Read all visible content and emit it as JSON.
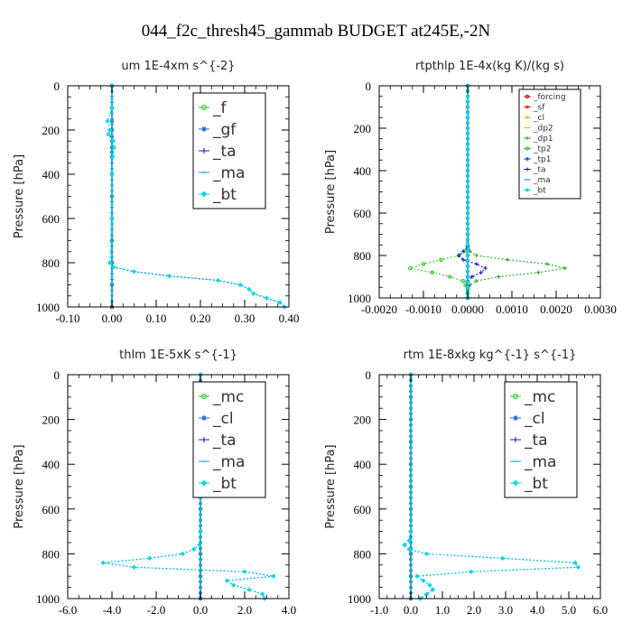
{
  "figure_title": "044_f2c_thresh45_gammab  BUDGET at245E,-2N",
  "chart_data": [
    {
      "type": "line",
      "title": "um  1E-4xm s^{-2}",
      "ylabel": "Pressure [hPa]",
      "xlim": [
        -0.1,
        0.4
      ],
      "ylim": [
        0,
        1000
      ],
      "y_inverted": true,
      "xticks": [
        "-0.10",
        "0.00",
        "0.10",
        "0.20",
        "0.30",
        "0.40"
      ],
      "yticks": [
        "0",
        "200",
        "400",
        "600",
        "800",
        "1000"
      ],
      "legend": {
        "position": "top-right",
        "size": "large"
      },
      "series": [
        {
          "name": "_f",
          "color": "#22cc22",
          "marker": "circle",
          "y": [
            0,
            100,
            200,
            300,
            400,
            500,
            600,
            700,
            800,
            900,
            1000
          ],
          "x": [
            0,
            0,
            0,
            0,
            0,
            0,
            0,
            0,
            0,
            0,
            0
          ]
        },
        {
          "name": "_gf",
          "color": "#1a5fd0",
          "marker": "star",
          "y": [
            0,
            100,
            160,
            200,
            230,
            250,
            280,
            320,
            400,
            600,
            800,
            900,
            1000
          ],
          "x": [
            0,
            0,
            0,
            0,
            0,
            0,
            0,
            0,
            0,
            0,
            0,
            0,
            0
          ]
        },
        {
          "name": "_ta",
          "color": "#1a1acc",
          "marker": "plus",
          "y": [
            0,
            100,
            200,
            300,
            400,
            500,
            600,
            700,
            800,
            820,
            840,
            860,
            880,
            900,
            920,
            940,
            960,
            980,
            1000
          ],
          "x": [
            0,
            0,
            0,
            0,
            0,
            0,
            0,
            0,
            0,
            0.004,
            0.05,
            0.13,
            0.24,
            0.29,
            0.31,
            0.32,
            0.35,
            0.38,
            0.39
          ]
        },
        {
          "name": "_ma",
          "color": "#1aaacc",
          "marker": "dash",
          "y": [
            0,
            1000
          ],
          "x": [
            0,
            0
          ]
        },
        {
          "name": "_bt",
          "color": "#00d8ee",
          "marker": "diamond",
          "y": [
            0,
            100,
            160,
            200,
            220,
            250,
            280,
            320,
            400,
            600,
            800,
            820,
            840,
            860,
            880,
            900,
            920,
            940,
            960,
            980,
            1000
          ],
          "x": [
            0,
            0,
            -0.01,
            -0.005,
            -0.008,
            0.003,
            0.005,
            0.002,
            0,
            0,
            -0.005,
            0.004,
            0.05,
            0.13,
            0.24,
            0.29,
            0.31,
            0.32,
            0.35,
            0.38,
            0.39
          ]
        }
      ]
    },
    {
      "type": "line",
      "title": "rtpthlp  1E-4x(kg K)/(kg s)",
      "ylabel": "Pressure [hPa]",
      "xlim": [
        -0.002,
        0.003
      ],
      "ylim": [
        0,
        1000
      ],
      "y_inverted": true,
      "xticks": [
        "-0.0020",
        "-0.0010",
        "0.0000",
        "0.0010",
        "0.0020",
        "0.0030"
      ],
      "yticks": [
        "0",
        "200",
        "400",
        "600",
        "800",
        "1000"
      ],
      "legend": {
        "position": "top-right",
        "size": "small"
      },
      "series": [
        {
          "name": "_forcing",
          "color": "#dd1111",
          "marker": "circle",
          "y": [
            0,
            1000
          ],
          "x": [
            0,
            0
          ]
        },
        {
          "name": "_sf",
          "color": "#ee3311",
          "marker": "star",
          "y": [
            0,
            1000
          ],
          "x": [
            0,
            0
          ]
        },
        {
          "name": "_cl",
          "color": "#ff9900",
          "marker": "plus",
          "y": [
            0,
            1000
          ],
          "x": [
            0,
            0
          ]
        },
        {
          "name": "_dp2",
          "color": "#e8c000",
          "marker": "dash",
          "y": [
            0,
            1000
          ],
          "x": [
            0,
            0
          ]
        },
        {
          "name": "_dp1",
          "color": "#22aa22",
          "marker": "plus",
          "y": [
            0,
            700,
            780,
            800,
            820,
            840,
            860,
            880,
            900,
            920,
            940,
            960,
            980,
            1000
          ],
          "x": [
            0,
            0,
            5e-05,
            0.0002,
            0.0009,
            0.0018,
            0.0022,
            0.0016,
            0.0007,
            0.0002,
            5e-05,
            0,
            0,
            0
          ]
        },
        {
          "name": "_tp2",
          "color": "#33cc33",
          "marker": "circle",
          "y": [
            0,
            700,
            780,
            800,
            820,
            840,
            860,
            880,
            900,
            920,
            940,
            960,
            980,
            1000
          ],
          "x": [
            0,
            0,
            -5e-05,
            -0.0002,
            -0.0006,
            -0.001,
            -0.0013,
            -0.0008,
            -0.0004,
            -0.0001,
            -5e-05,
            0,
            0,
            0
          ]
        },
        {
          "name": "_tp1",
          "color": "#1a5fd0",
          "marker": "star",
          "y": [
            0,
            1000
          ],
          "x": [
            0,
            0
          ]
        },
        {
          "name": "_ta",
          "color": "#1a1acc",
          "marker": "plus",
          "y": [
            0,
            760,
            780,
            800,
            820,
            840,
            860,
            880,
            900,
            920,
            940,
            1000
          ],
          "x": [
            0,
            0,
            -0.0001,
            -0.0002,
            -0.0001,
            0.0002,
            0.0004,
            0.0003,
            0.0001,
            0,
            0,
            0
          ]
        },
        {
          "name": "_ma",
          "color": "#1aaacc",
          "marker": "dash",
          "y": [
            0,
            1000
          ],
          "x": [
            0,
            0
          ]
        },
        {
          "name": "_bt",
          "color": "#00d8ee",
          "marker": "diamond",
          "y": [
            0,
            1000
          ],
          "x": [
            0,
            0
          ]
        }
      ]
    },
    {
      "type": "line",
      "title": "thlm  1E-5xK s^{-1}",
      "ylabel": "Pressure [hPa]",
      "xlim": [
        -6.0,
        4.0
      ],
      "ylim": [
        0,
        1000
      ],
      "y_inverted": true,
      "xticks": [
        "-6.0",
        "-4.0",
        "-2.0",
        "0.0",
        "2.0",
        "4.0"
      ],
      "yticks": [
        "0",
        "200",
        "400",
        "600",
        "800",
        "1000"
      ],
      "legend": {
        "position": "top-right",
        "size": "large"
      },
      "series": [
        {
          "name": "_mc",
          "color": "#22cc22",
          "marker": "circle",
          "y": [
            0,
            100,
            200,
            300,
            400,
            500,
            600,
            700,
            800,
            900,
            1000
          ],
          "x": [
            0,
            0,
            0,
            0,
            0,
            0,
            0,
            0,
            0,
            0,
            0
          ]
        },
        {
          "name": "_cl",
          "color": "#1a5fd0",
          "marker": "star",
          "y": [
            0,
            1000
          ],
          "x": [
            0,
            0
          ]
        },
        {
          "name": "_ta",
          "color": "#1a1acc",
          "marker": "plus",
          "y": [
            0,
            700,
            760,
            780,
            800,
            820,
            840,
            860,
            880,
            900,
            920,
            940,
            960,
            980,
            1000
          ],
          "x": [
            0,
            0,
            -0.05,
            -0.3,
            -0.8,
            -2.3,
            -4.4,
            -3.0,
            2.0,
            3.3,
            1.2,
            1.5,
            2.2,
            2.8,
            2.9
          ]
        },
        {
          "name": "_ma",
          "color": "#1aaacc",
          "marker": "dash",
          "y": [
            0,
            1000
          ],
          "x": [
            0,
            0
          ]
        },
        {
          "name": "_bt",
          "color": "#00d8ee",
          "marker": "diamond",
          "y": [
            0,
            700,
            760,
            780,
            800,
            820,
            840,
            860,
            880,
            900,
            920,
            940,
            960,
            980,
            1000
          ],
          "x": [
            0,
            0,
            -0.05,
            -0.3,
            -0.8,
            -2.3,
            -4.4,
            -3.0,
            2.0,
            3.3,
            1.2,
            1.5,
            2.2,
            2.8,
            2.9
          ]
        }
      ]
    },
    {
      "type": "line",
      "title": "rtm  1E-8xkg kg^{-1} s^{-1}",
      "ylabel": "Pressure [hPa]",
      "xlim": [
        -1.0,
        6.0
      ],
      "ylim": [
        0,
        1000
      ],
      "y_inverted": true,
      "xticks": [
        "-1.0",
        "0.0",
        "1.0",
        "2.0",
        "3.0",
        "4.0",
        "5.0",
        "6.0"
      ],
      "yticks": [
        "0",
        "200",
        "400",
        "600",
        "800",
        "1000"
      ],
      "legend": {
        "position": "top-right",
        "size": "large"
      },
      "series": [
        {
          "name": "_mc",
          "color": "#22cc22",
          "marker": "circle",
          "y": [
            0,
            100,
            200,
            300,
            400,
            500,
            600,
            700,
            800,
            900,
            1000
          ],
          "x": [
            0,
            0,
            0,
            0,
            0,
            0,
            0,
            0,
            0,
            0,
            0
          ]
        },
        {
          "name": "_cl",
          "color": "#1a5fd0",
          "marker": "star",
          "y": [
            0,
            1000
          ],
          "x": [
            0,
            0
          ]
        },
        {
          "name": "_ta",
          "color": "#1a1acc",
          "marker": "plus",
          "y": [
            0,
            700,
            740,
            760,
            780,
            800,
            820,
            840,
            860,
            880,
            900,
            920,
            940,
            960,
            980,
            1000
          ],
          "x": [
            0,
            0,
            -0.05,
            -0.2,
            -0.05,
            0.5,
            2.9,
            5.2,
            5.3,
            1.9,
            0.2,
            0.4,
            0.6,
            0.7,
            0.5,
            0.3
          ]
        },
        {
          "name": "_ma",
          "color": "#1aaacc",
          "marker": "dash",
          "y": [
            0,
            1000
          ],
          "x": [
            0,
            0
          ]
        },
        {
          "name": "_bt",
          "color": "#00d8ee",
          "marker": "diamond",
          "y": [
            0,
            700,
            740,
            760,
            780,
            800,
            820,
            840,
            860,
            880,
            900,
            920,
            940,
            960,
            980,
            1000
          ],
          "x": [
            0,
            0,
            -0.05,
            -0.2,
            -0.05,
            0.5,
            2.9,
            5.2,
            5.3,
            1.9,
            0.2,
            0.4,
            0.6,
            0.7,
            0.5,
            0.3
          ]
        }
      ]
    }
  ]
}
